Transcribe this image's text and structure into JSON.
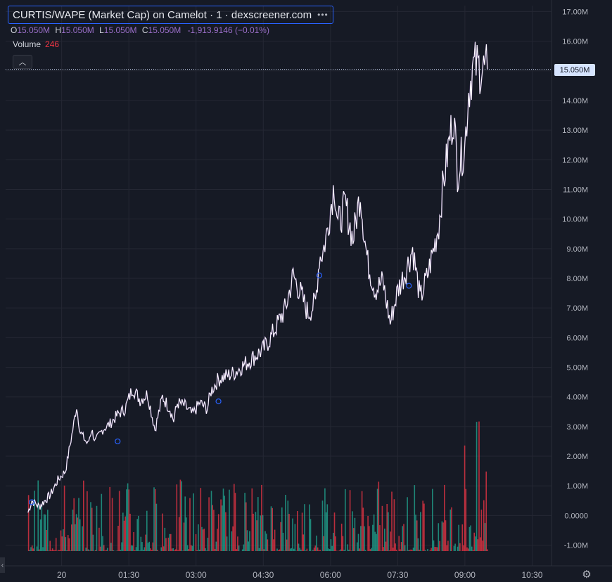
{
  "legend": {
    "title": "CURTIS/WAPE (Market Cap) on Camelot · 1 · dexscreener.com",
    "more_icon": "•••",
    "o_label": "O",
    "o_value": "15.050M",
    "h_label": "H",
    "h_value": "15.050M",
    "l_label": "L",
    "l_value": "15.050M",
    "c_label": "C",
    "c_value": "15.050M",
    "change": "-1,913.9146 (−0.01%)",
    "volume_label": "Volume",
    "volume_value": "246",
    "collapse_icon": "︿"
  },
  "last_price_label": "15.050M",
  "settings_icon": "⚙",
  "scroll_left_icon": "‹",
  "colors": {
    "background": "#161a25",
    "grid": "#242733",
    "line": "#ffffff",
    "line_accent": "#9b6fc9",
    "volume_up": "#22ab94",
    "volume_down": "#f23645",
    "axis_text": "#b2b5be",
    "price_tag": "#d6e4ff",
    "marker": "#2962ff"
  },
  "chart_data": {
    "type": "line",
    "title": "CURTIS/WAPE (Market Cap) on Camelot · 1 · dexscreener.com",
    "x_ticks": [
      "20",
      "01:30",
      "03:00",
      "04:30",
      "06:00",
      "07:30",
      "09:00",
      "10:30"
    ],
    "y_ticks": [
      "17.00M",
      "16.00M",
      "15.00M",
      "14.00M",
      "13.00M",
      "12.00M",
      "11.00M",
      "10.00M",
      "9.00M",
      "8.00M",
      "7.00M",
      "6.00M",
      "5.00M",
      "4.00M",
      "3.00M",
      "2.00M",
      "1.00M",
      "0.0000",
      "-1.00M"
    ],
    "ylim": [
      -1.2,
      17.2
    ],
    "xlim": [
      "22:45",
      "10:55"
    ],
    "grid": true,
    "series": [
      {
        "x": [
          "23:15",
          "23:20",
          "23:30",
          "23:45",
          "23:55",
          "00:05",
          "00:15",
          "00:20",
          "00:25",
          "00:35",
          "00:40",
          "00:45",
          "00:55",
          "01:05",
          "01:15",
          "01:25",
          "01:35",
          "01:45",
          "01:55",
          "02:05",
          "02:15",
          "02:25",
          "02:30",
          "02:35",
          "02:45",
          "02:55",
          "03:05",
          "03:15",
          "03:20",
          "03:30",
          "03:40",
          "03:50",
          "04:00",
          "04:10",
          "04:20",
          "04:30",
          "04:40",
          "04:50",
          "05:00",
          "05:10",
          "05:20",
          "05:30",
          "05:40",
          "05:45",
          "05:50",
          "05:55",
          "06:05",
          "06:10",
          "06:20",
          "06:30",
          "06:40",
          "06:45",
          "06:50",
          "07:00",
          "07:10",
          "07:20",
          "07:30",
          "07:40",
          "07:45",
          "07:50",
          "08:00",
          "08:10",
          "08:20",
          "08:25",
          "08:30",
          "08:40",
          "08:45",
          "08:50",
          "09:00",
          "09:05",
          "09:10",
          "09:15",
          "09:20",
          "09:25",
          "09:30"
        ],
        "values": [
          0.1,
          0.5,
          0.3,
          0.7,
          1.2,
          1.5,
          2.9,
          3.7,
          2.8,
          2.4,
          2.9,
          2.5,
          2.9,
          3.1,
          3.4,
          3.6,
          4.3,
          3.9,
          4.1,
          2.9,
          4.0,
          3.6,
          3.2,
          3.8,
          3.7,
          3.4,
          3.8,
          3.6,
          4.2,
          4.6,
          4.7,
          4.8,
          5.0,
          5.2,
          5.4,
          5.6,
          6.0,
          6.5,
          7.0,
          8.1,
          7.5,
          6.8,
          7.2,
          8.7,
          8.9,
          9.5,
          11.2,
          9.8,
          10.5,
          9.3,
          10.9,
          9.5,
          8.5,
          7.6,
          7.9,
          6.5,
          7.6,
          8.2,
          8.6,
          9.0,
          7.3,
          8.1,
          9.2,
          9.8,
          11.0,
          12.8,
          13.5,
          11.6,
          12.5,
          14.3,
          15.05,
          15.2,
          15.1,
          15.05,
          15.05
        ]
      }
    ],
    "last_value": 15.05,
    "volume_axis_max_M": 3.3
  }
}
